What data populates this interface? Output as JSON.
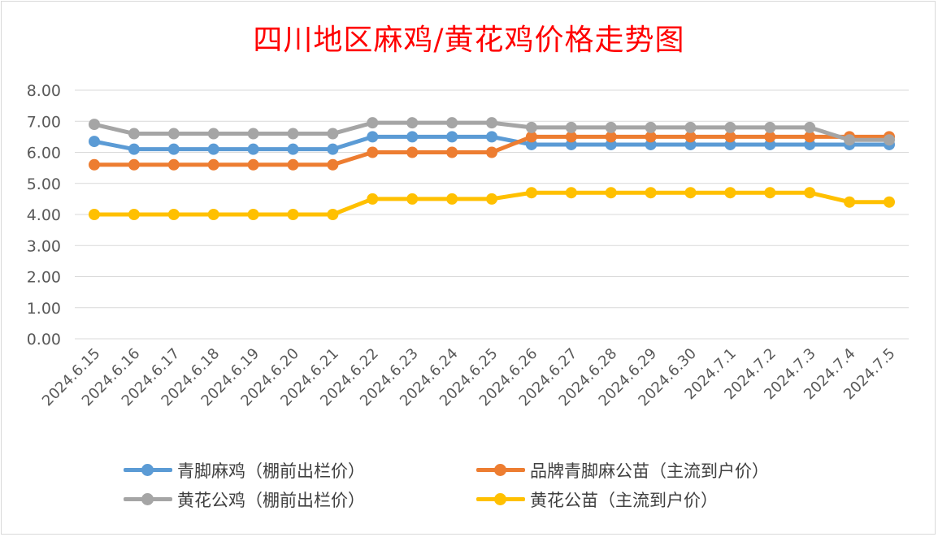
{
  "chart_data": {
    "type": "line",
    "title": "四川地区麻鸡/黄花鸡价格走势图",
    "categories": [
      "2024.6.15",
      "2024.6.16",
      "2024.6.17",
      "2024.6.18",
      "2024.6.19",
      "2024.6.20",
      "2024.6.21",
      "2024.6.22",
      "2024.6.23",
      "2024.6.24",
      "2024.6.25",
      "2024.6.26",
      "2024.6.27",
      "2024.6.28",
      "2024.6.29",
      "2024.6.30",
      "2024.7.1",
      "2024.7.2",
      "2024.7.3",
      "2024.7.4",
      "2024.7.5"
    ],
    "ylim": [
      0,
      8
    ],
    "yticks": [
      "0.00",
      "1.00",
      "2.00",
      "3.00",
      "4.00",
      "5.00",
      "6.00",
      "7.00",
      "8.00"
    ],
    "grid": true,
    "legend_position": "bottom",
    "series": [
      {
        "name": "青脚麻鸡（棚前出栏价）",
        "color": "#5b9bd5",
        "values": [
          6.35,
          6.1,
          6.1,
          6.1,
          6.1,
          6.1,
          6.1,
          6.5,
          6.5,
          6.5,
          6.5,
          6.25,
          6.25,
          6.25,
          6.25,
          6.25,
          6.25,
          6.25,
          6.25,
          6.25,
          6.25
        ]
      },
      {
        "name": "品牌青脚麻公苗（主流到户价）",
        "color": "#ed7d31",
        "values": [
          5.6,
          5.6,
          5.6,
          5.6,
          5.6,
          5.6,
          5.6,
          6.0,
          6.0,
          6.0,
          6.0,
          6.5,
          6.5,
          6.5,
          6.5,
          6.5,
          6.5,
          6.5,
          6.5,
          6.5,
          6.5
        ]
      },
      {
        "name": "黄花公鸡（棚前出栏价）",
        "color": "#a5a5a5",
        "values": [
          6.9,
          6.6,
          6.6,
          6.6,
          6.6,
          6.6,
          6.6,
          6.95,
          6.95,
          6.95,
          6.95,
          6.8,
          6.8,
          6.8,
          6.8,
          6.8,
          6.8,
          6.8,
          6.8,
          6.4,
          6.4
        ]
      },
      {
        "name": "黄花公苗（主流到户价）",
        "color": "#ffc000",
        "values": [
          4.0,
          4.0,
          4.0,
          4.0,
          4.0,
          4.0,
          4.0,
          4.5,
          4.5,
          4.5,
          4.5,
          4.7,
          4.7,
          4.7,
          4.7,
          4.7,
          4.7,
          4.7,
          4.7,
          4.4,
          4.4
        ]
      }
    ]
  }
}
